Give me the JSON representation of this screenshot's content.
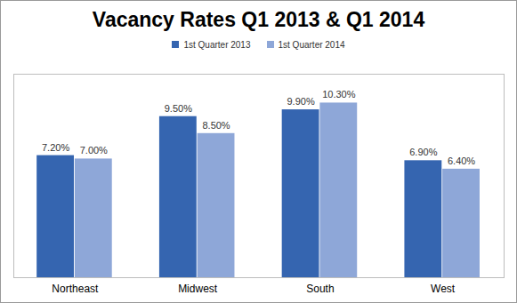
{
  "chart_data": {
    "type": "bar",
    "title": "Vacancy Rates Q1 2013 & Q1 2014",
    "categories": [
      "Northeast",
      "Midwest",
      "South",
      "West"
    ],
    "series": [
      {
        "name": "1st Quarter 2013",
        "color": "#3565b0",
        "values": [
          7.2,
          9.5,
          9.9,
          6.9
        ],
        "value_labels": [
          "7.20%",
          "9.50%",
          "9.90%",
          "6.90%"
        ]
      },
      {
        "name": "1st Quarter 2014",
        "color": "#8ea7d8",
        "values": [
          7.0,
          8.5,
          10.3,
          6.4
        ],
        "value_labels": [
          "7.00%",
          "8.50%",
          "10.30%",
          "6.40%"
        ]
      }
    ],
    "ylim": [
      0,
      12
    ],
    "grid": false,
    "legend": "top",
    "data_labels": true,
    "tick_labels": "x"
  }
}
